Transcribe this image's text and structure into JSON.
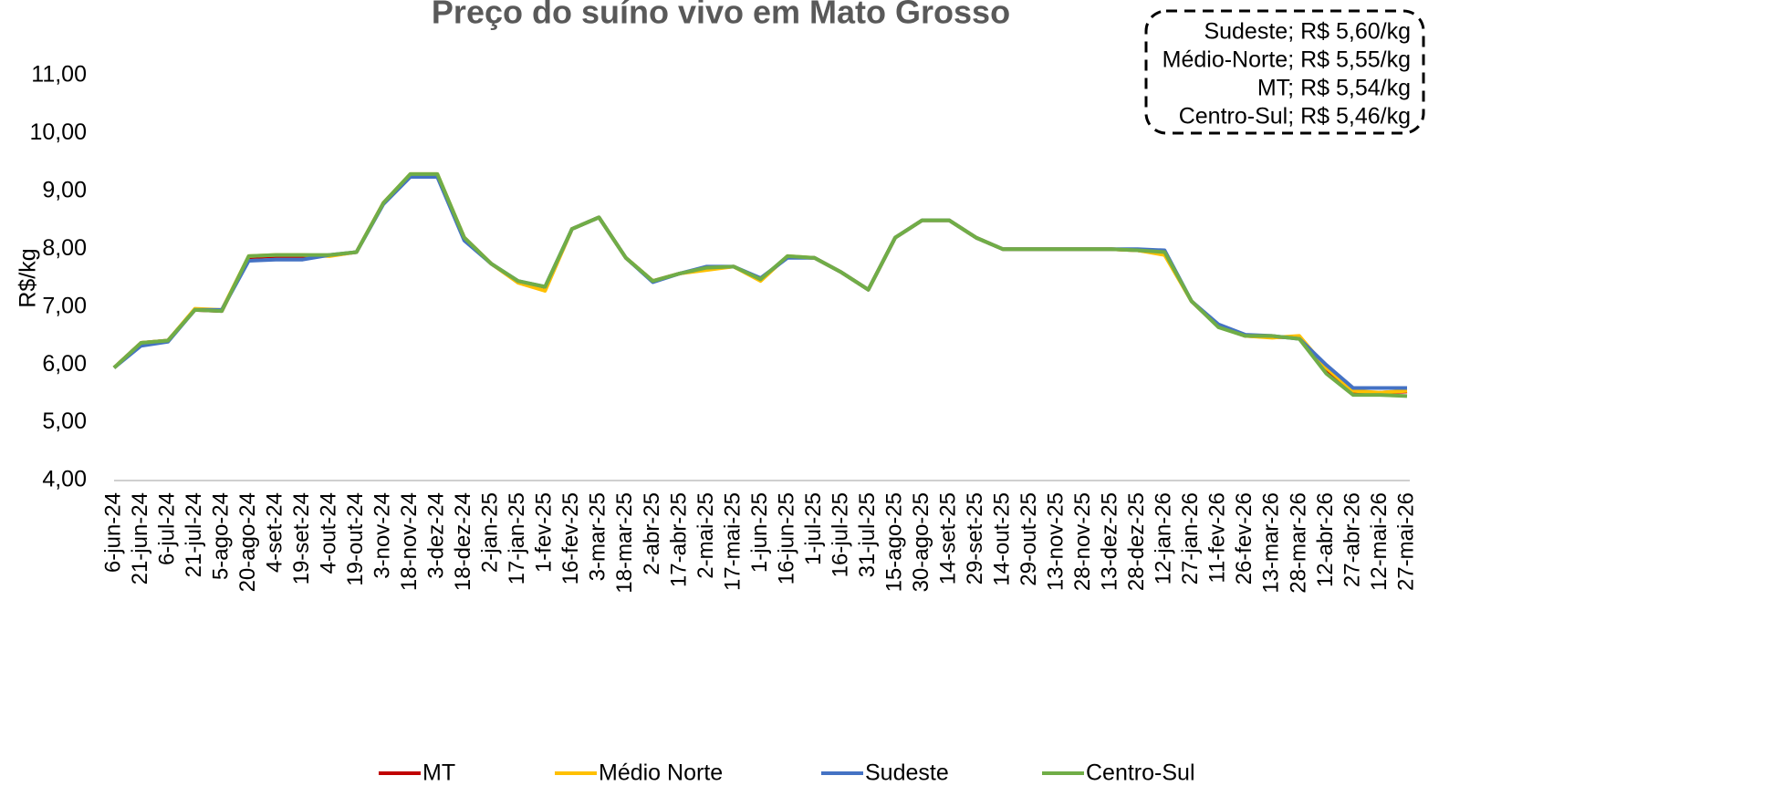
{
  "chart_data": {
    "type": "line",
    "title": "Preço do suíno vivo em Mato Grosso",
    "y_label": "R$/kg",
    "annotations": [
      "Sudeste;  R$ 5,60/kg",
      "Médio-Norte; R$ 5,55/kg",
      "MT; R$ 5,54/kg",
      "Centro-Sul; R$ 5,46/kg"
    ],
    "legend": "bottom",
    "grid": false,
    "categories": [
      "6-jun-24",
      "21-jun-24",
      "6-jul-24",
      "21-jul-24",
      "5-ago-24",
      "20-ago-24",
      "4-set-24",
      "19-set-24",
      "4-out-24",
      "19-out-24",
      "3-nov-24",
      "18-nov-24",
      "3-dez-24",
      "18-dez-24",
      "2-jan-25",
      "17-jan-25",
      "1-fev-25",
      "16-fev-25",
      "3-mar-25",
      "18-mar-25",
      "2-abr-25",
      "17-abr-25",
      "2-mai-25",
      "17-mai-25",
      "1-jun-25",
      "16-jun-25",
      "1-jul-25",
      "16-jul-25",
      "31-jul-25",
      "15-ago-25",
      "30-ago-25",
      "14-set-25",
      "29-set-25",
      "14-out-25",
      "29-out-25",
      "13-nov-25",
      "28-nov-25",
      "13-dez-25",
      "28-dez-25",
      "12-jan-26",
      "27-jan-26",
      "11-fev-26",
      "26-fev-26",
      "13-mar-26",
      "28-mar-26",
      "12-abr-26",
      "27-abr-26",
      "12-mai-26",
      "27-mai-26"
    ],
    "ylim": [
      4,
      11
    ],
    "yticks": [
      {
        "value": 4,
        "label": "4,00"
      },
      {
        "value": 5,
        "label": "5,00"
      },
      {
        "value": 6,
        "label": "6,00"
      },
      {
        "value": 7,
        "label": "7,00"
      },
      {
        "value": 8,
        "label": "8,00"
      },
      {
        "value": 9,
        "label": "9,00"
      },
      {
        "value": 10,
        "label": "10,00"
      },
      {
        "value": 11,
        "label": "11,00"
      }
    ],
    "series": [
      {
        "name": "MT",
        "color": "#c00000",
        "values": [
          5.95,
          6.38,
          6.42,
          6.95,
          6.93,
          7.86,
          7.88,
          7.88,
          7.89,
          7.95,
          8.8,
          9.28,
          9.28,
          8.2,
          7.75,
          7.43,
          7.3,
          8.35,
          8.55,
          7.85,
          7.45,
          7.58,
          7.66,
          7.7,
          7.47,
          7.87,
          7.85,
          7.6,
          7.3,
          8.2,
          8.5,
          8.5,
          8.2,
          8.0,
          8.0,
          8.0,
          8.0,
          8.0,
          7.98,
          7.92,
          7.1,
          6.66,
          6.5,
          6.48,
          6.48,
          5.9,
          5.52,
          5.52,
          5.54
        ]
      },
      {
        "name": "Médio Norte",
        "color": "#ffc000",
        "values": [
          5.95,
          6.38,
          6.42,
          6.97,
          6.95,
          7.88,
          7.9,
          7.9,
          7.88,
          7.95,
          8.8,
          9.3,
          9.3,
          8.2,
          7.75,
          7.42,
          7.28,
          8.35,
          8.55,
          7.85,
          7.45,
          7.58,
          7.64,
          7.7,
          7.45,
          7.88,
          7.85,
          7.6,
          7.3,
          8.2,
          8.5,
          8.5,
          8.2,
          8.0,
          8.0,
          8.0,
          8.0,
          8.0,
          7.98,
          7.9,
          7.1,
          6.67,
          6.5,
          6.47,
          6.5,
          5.95,
          5.55,
          5.52,
          5.55
        ]
      },
      {
        "name": "Sudeste",
        "color": "#4472c4",
        "values": [
          5.95,
          6.33,
          6.4,
          6.95,
          6.95,
          7.8,
          7.82,
          7.82,
          7.9,
          7.95,
          8.78,
          9.25,
          9.25,
          8.15,
          7.75,
          7.45,
          7.35,
          8.35,
          8.55,
          7.85,
          7.43,
          7.58,
          7.7,
          7.7,
          7.5,
          7.85,
          7.85,
          7.6,
          7.3,
          8.2,
          8.5,
          8.5,
          8.2,
          8.0,
          8.0,
          8.0,
          8.0,
          8.0,
          8.0,
          7.98,
          7.1,
          6.7,
          6.52,
          6.5,
          6.45,
          6.0,
          5.6,
          5.6,
          5.6
        ]
      },
      {
        "name": "Centro-Sul",
        "color": "#70ad47",
        "values": [
          5.95,
          6.38,
          6.42,
          6.95,
          6.93,
          7.88,
          7.9,
          7.9,
          7.9,
          7.95,
          8.8,
          9.3,
          9.3,
          8.2,
          7.75,
          7.45,
          7.35,
          8.35,
          8.55,
          7.85,
          7.45,
          7.58,
          7.68,
          7.7,
          7.48,
          7.88,
          7.85,
          7.6,
          7.3,
          8.2,
          8.5,
          8.5,
          8.2,
          8.0,
          8.0,
          8.0,
          8.0,
          8.0,
          7.98,
          7.95,
          7.1,
          6.65,
          6.5,
          6.5,
          6.45,
          5.85,
          5.48,
          5.48,
          5.46
        ]
      }
    ]
  }
}
